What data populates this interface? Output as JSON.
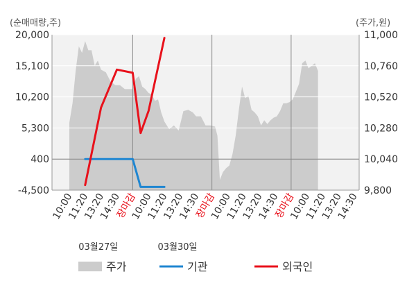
{
  "chart_data": {
    "type": "line",
    "units": {
      "left": "(순매매량,주)",
      "right": "(주가,원)"
    },
    "left_axis": {
      "ticks": [
        "20,000",
        "15,100",
        "10,200",
        "5,300",
        "400",
        "-4,500"
      ],
      "ylim": [
        -4500,
        20000
      ]
    },
    "right_axis": {
      "ticks": [
        "11,000",
        "10,760",
        "10,520",
        "10,280",
        "10,040",
        "9,800"
      ],
      "ylim": [
        9800,
        11000
      ]
    },
    "x_ticks": [
      {
        "label": "10:00",
        "color": "#333333"
      },
      {
        "label": "11:20",
        "color": "#333333"
      },
      {
        "label": "13:20",
        "color": "#333333"
      },
      {
        "label": "14:30",
        "color": "#333333"
      },
      {
        "label": "장마감",
        "color": "#e8111b"
      },
      {
        "label": "10:00",
        "color": "#333333"
      },
      {
        "label": "11:20",
        "color": "#333333"
      },
      {
        "label": "13:20",
        "color": "#333333"
      },
      {
        "label": "14:30",
        "color": "#333333"
      },
      {
        "label": "장마감",
        "color": "#e8111b"
      },
      {
        "label": "10:00",
        "color": "#333333"
      },
      {
        "label": "11:20",
        "color": "#333333"
      },
      {
        "label": "13:20",
        "color": "#333333"
      },
      {
        "label": "14:30",
        "color": "#333333"
      },
      {
        "label": "장마감",
        "color": "#e8111b"
      },
      {
        "label": "10:00",
        "color": "#333333"
      },
      {
        "label": "11:20",
        "color": "#333333"
      },
      {
        "label": "13:20",
        "color": "#333333"
      },
      {
        "label": "14:30",
        "color": "#333333"
      }
    ],
    "date_labels": [
      {
        "label": "03월27일",
        "tick_index": 2
      },
      {
        "label": "03월30일",
        "tick_index": 7
      }
    ],
    "session_boundaries": [
      4,
      9,
      14
    ],
    "series": [
      {
        "name": "주가",
        "type": "area",
        "axis": "right",
        "color": "#cccccc",
        "x": [
          0,
          0.2,
          0.4,
          0.6,
          0.8,
          1.0,
          1.2,
          1.4,
          1.6,
          1.8,
          2.0,
          2.3,
          2.6,
          2.9,
          3.2,
          3.5,
          3.8,
          4.0,
          4.2,
          4.4,
          4.6,
          4.8,
          5.0,
          5.2,
          5.4,
          5.6,
          5.8,
          6.0,
          6.3,
          6.6,
          6.9,
          7.2,
          7.5,
          7.8,
          8.0,
          8.3,
          8.6,
          8.9,
          9.2,
          9.35,
          9.5,
          9.7,
          9.9,
          10.1,
          10.3,
          10.5,
          10.7,
          10.9,
          11.1,
          11.3,
          11.5,
          11.7,
          11.9,
          12.1,
          12.3,
          12.5,
          12.7,
          12.9,
          13.1,
          13.3,
          13.5,
          13.7,
          13.9,
          14.1,
          14.3,
          14.5,
          14.7,
          14.9,
          15.1,
          15.3,
          15.5,
          15.7
        ],
        "values": [
          10320,
          10470,
          10720,
          10910,
          10860,
          10950,
          10880,
          10880,
          10760,
          10800,
          10730,
          10710,
          10640,
          10610,
          10610,
          10580,
          10580,
          10580,
          10660,
          10680,
          10600,
          10580,
          10550,
          10540,
          10490,
          10500,
          10400,
          10330,
          10270,
          10300,
          10260,
          10410,
          10420,
          10400,
          10370,
          10370,
          10300,
          10300,
          10290,
          10220,
          9880,
          9940,
          9970,
          9990,
          10080,
          10220,
          10420,
          10600,
          10510,
          10530,
          10420,
          10400,
          10370,
          10300,
          10340,
          10310,
          10340,
          10360,
          10370,
          10410,
          10470,
          10470,
          10480,
          10500,
          10560,
          10620,
          10780,
          10800,
          10740,
          10760,
          10780,
          10720
        ]
      },
      {
        "name": "기관",
        "type": "line",
        "axis": "left",
        "color": "#1f86d1",
        "x": [
          1,
          2,
          3,
          4,
          4.5,
          5,
          6
        ],
        "values": [
          400,
          400,
          400,
          400,
          -4000,
          -4000,
          -4000
        ]
      },
      {
        "name": "외국인",
        "type": "line",
        "axis": "left",
        "color": "#e8111b",
        "x": [
          1,
          2,
          3,
          4,
          4.5,
          5,
          6
        ],
        "values": [
          -3700,
          8500,
          14500,
          14000,
          4500,
          8000,
          19500
        ]
      }
    ],
    "legend": [
      {
        "label": "주가",
        "kind": "area",
        "color": "#cccccc"
      },
      {
        "label": "기관",
        "kind": "line",
        "color": "#1f86d1"
      },
      {
        "label": "외국인",
        "kind": "line",
        "color": "#e8111b"
      }
    ],
    "grid": true,
    "legend_position": "bottom"
  }
}
